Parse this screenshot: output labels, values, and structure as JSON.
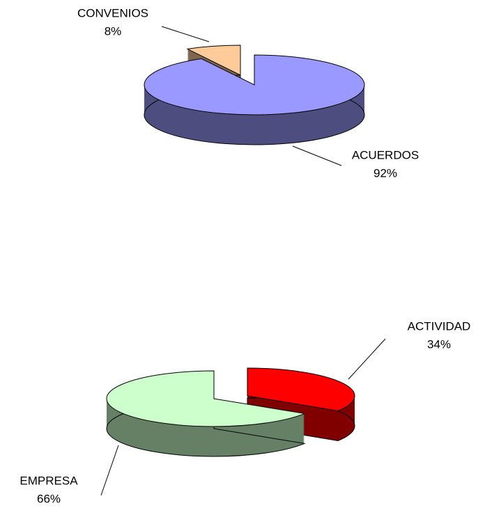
{
  "chart_data": [
    {
      "type": "pie",
      "categories": [
        "ACUERDOS",
        "CONVENIOS"
      ],
      "values": [
        92,
        8
      ],
      "value_labels": [
        "92%",
        "8%"
      ],
      "colors": [
        "#9999ff",
        "#ffcc99"
      ]
    },
    {
      "type": "pie",
      "categories": [
        "ACTIVIDAD",
        "EMPRESA"
      ],
      "values": [
        34,
        66
      ],
      "value_labels": [
        "34%",
        "66%"
      ],
      "colors": [
        "#ff0000",
        "#ccffcc"
      ]
    }
  ]
}
